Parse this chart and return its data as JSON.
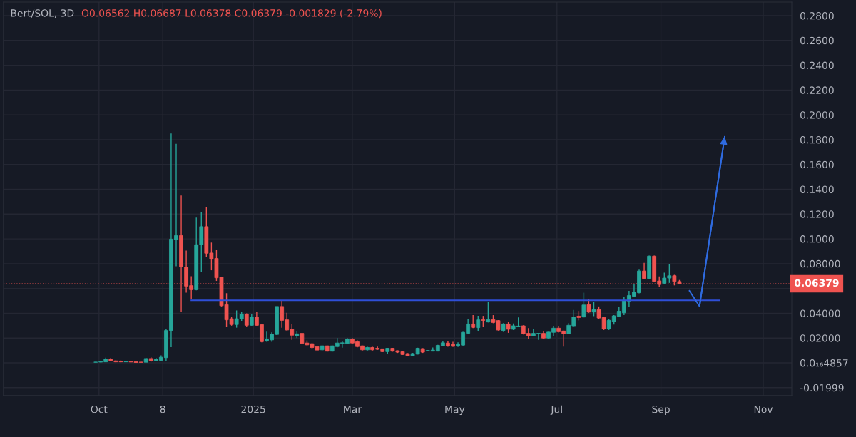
{
  "chart_data": {
    "type": "candlestick",
    "title": "Bert/SOL, 3D",
    "subtitle": "O0.06562 H0.06687 L0.06378 C0.06379 -0.001829 (-2.79%)",
    "x": [
      "2024-09-29",
      "2024-10-02",
      "2024-10-05",
      "2024-10-08",
      "2024-10-11",
      "2024-10-14",
      "2024-10-17",
      "2024-10-20",
      "2024-10-23",
      "2024-10-26",
      "2024-10-29",
      "2024-11-01",
      "2024-11-04",
      "2024-11-07",
      "2024-11-10",
      "2024-11-13",
      "2024-11-16",
      "2024-11-19",
      "2024-11-22",
      "2024-11-25",
      "2024-11-28",
      "2024-12-01",
      "2024-12-04",
      "2024-12-07",
      "2024-12-10",
      "2024-12-13",
      "2024-12-16",
      "2024-12-19",
      "2024-12-22",
      "2024-12-25",
      "2024-12-28",
      "2024-12-31",
      "2025-01-03",
      "2025-01-06",
      "2025-01-09",
      "2025-01-12",
      "2025-01-15",
      "2025-01-18",
      "2025-01-21",
      "2025-01-24",
      "2025-01-27",
      "2025-01-30",
      "2025-02-02",
      "2025-02-05",
      "2025-02-08",
      "2025-02-11",
      "2025-02-14",
      "2025-02-17",
      "2025-02-20",
      "2025-02-23",
      "2025-02-26",
      "2025-03-01",
      "2025-03-04",
      "2025-03-07",
      "2025-03-10",
      "2025-03-13",
      "2025-03-16",
      "2025-03-19",
      "2025-03-22",
      "2025-03-25",
      "2025-03-28",
      "2025-03-31",
      "2025-04-03",
      "2025-04-06",
      "2025-04-09",
      "2025-04-12",
      "2025-04-15",
      "2025-04-18",
      "2025-04-21",
      "2025-04-24",
      "2025-04-27",
      "2025-04-30",
      "2025-05-03",
      "2025-05-06",
      "2025-05-09",
      "2025-05-12",
      "2025-05-15",
      "2025-05-18",
      "2025-05-21",
      "2025-05-24",
      "2025-05-27",
      "2025-05-30",
      "2025-06-02",
      "2025-06-05",
      "2025-06-08",
      "2025-06-11",
      "2025-06-14",
      "2025-06-17",
      "2025-06-20",
      "2025-06-23",
      "2025-06-26",
      "2025-06-29",
      "2025-07-02",
      "2025-07-05",
      "2025-07-08",
      "2025-07-11",
      "2025-07-14",
      "2025-07-17",
      "2025-07-20",
      "2025-07-23",
      "2025-07-26",
      "2025-07-29",
      "2025-08-01",
      "2025-08-04",
      "2025-08-07",
      "2025-08-10",
      "2025-08-13",
      "2025-08-16",
      "2025-08-19",
      "2025-08-22",
      "2025-08-25",
      "2025-08-28",
      "2025-08-31",
      "2025-09-03",
      "2025-09-06",
      "2025-09-09",
      "2025-09-12"
    ],
    "ohlc": [
      [
        0.0005,
        0.0008,
        0.0004,
        0.0006
      ],
      [
        0.0006,
        0.0012,
        0.0005,
        0.001
      ],
      [
        0.0008,
        0.0042,
        0.0006,
        0.003
      ],
      [
        0.003,
        0.004,
        0.0012,
        0.0015
      ],
      [
        0.0016,
        0.002,
        0.0005,
        0.0008
      ],
      [
        0.001,
        0.002,
        0.0005,
        0.0008
      ],
      [
        0.0008,
        0.0016,
        0.0006,
        0.0012
      ],
      [
        0.0013,
        0.0014,
        0.0005,
        0.0007
      ],
      [
        0.0009,
        0.0012,
        0.0,
        0.0003
      ],
      [
        0.0006,
        0.001,
        0.0001,
        0.0004
      ],
      [
        0.0005,
        0.004,
        0.0004,
        0.0035
      ],
      [
        0.0035,
        0.0045,
        0.001,
        0.0015
      ],
      [
        0.0015,
        0.004,
        0.0012,
        0.003
      ],
      [
        0.002,
        0.006,
        0.0015,
        0.0045
      ],
      [
        0.0042,
        0.027,
        0.0015,
        0.0261
      ],
      [
        0.0261,
        0.185,
        0.0127,
        0.0998
      ],
      [
        0.0994,
        0.1766,
        0.0779,
        0.1027
      ],
      [
        0.1027,
        0.135,
        0.0413,
        0.0775
      ],
      [
        0.0771,
        0.0905,
        0.0566,
        0.0619
      ],
      [
        0.0623,
        0.0699,
        0.0513,
        0.059
      ],
      [
        0.059,
        0.1171,
        0.0585,
        0.0953
      ],
      [
        0.0953,
        0.1217,
        0.0731,
        0.1099
      ],
      [
        0.1099,
        0.1255,
        0.0855,
        0.0884
      ],
      [
        0.0886,
        0.097,
        0.0747,
        0.0836
      ],
      [
        0.0842,
        0.0913,
        0.0661,
        0.0686
      ],
      [
        0.0691,
        0.0691,
        0.0455,
        0.0461
      ],
      [
        0.047,
        0.0562,
        0.029,
        0.0347
      ],
      [
        0.0356,
        0.037,
        0.03,
        0.0309
      ],
      [
        0.0309,
        0.0423,
        0.0284,
        0.0356
      ],
      [
        0.0356,
        0.0413,
        0.034,
        0.0394
      ],
      [
        0.0394,
        0.04,
        0.029,
        0.0303
      ],
      [
        0.0303,
        0.0394,
        0.0301,
        0.0371
      ],
      [
        0.0371,
        0.041,
        0.03,
        0.0303
      ],
      [
        0.0309,
        0.0309,
        0.0165,
        0.0171
      ],
      [
        0.0175,
        0.0251,
        0.017,
        0.019
      ],
      [
        0.0185,
        0.0246,
        0.017,
        0.0233
      ],
      [
        0.0229,
        0.0455,
        0.0225,
        0.0455
      ],
      [
        0.0455,
        0.0505,
        0.0284,
        0.0343
      ],
      [
        0.0347,
        0.0404,
        0.026,
        0.0265
      ],
      [
        0.027,
        0.0314,
        0.0185,
        0.0223
      ],
      [
        0.0217,
        0.0255,
        0.02,
        0.0234
      ],
      [
        0.0238,
        0.0238,
        0.015,
        0.0156
      ],
      [
        0.016,
        0.0181,
        0.014,
        0.0145
      ],
      [
        0.0154,
        0.016,
        0.011,
        0.0124
      ],
      [
        0.0131,
        0.0135,
        0.01,
        0.0103
      ],
      [
        0.0105,
        0.014,
        0.01,
        0.0137
      ],
      [
        0.0137,
        0.014,
        0.009,
        0.0094
      ],
      [
        0.0094,
        0.014,
        0.009,
        0.0137
      ],
      [
        0.0131,
        0.02,
        0.0125,
        0.016
      ],
      [
        0.0158,
        0.0175,
        0.0123,
        0.0162
      ],
      [
        0.0156,
        0.02,
        0.015,
        0.019
      ],
      [
        0.019,
        0.02,
        0.015,
        0.016
      ],
      [
        0.017,
        0.0181,
        0.0125,
        0.0131
      ],
      [
        0.0137,
        0.014,
        0.01,
        0.0105
      ],
      [
        0.0105,
        0.013,
        0.01,
        0.0124
      ],
      [
        0.0124,
        0.013,
        0.01,
        0.0105
      ],
      [
        0.0118,
        0.0131,
        0.0105,
        0.0109
      ],
      [
        0.0113,
        0.0115,
        0.0088,
        0.009
      ],
      [
        0.009,
        0.012,
        0.0075,
        0.0118
      ],
      [
        0.0118,
        0.012,
        0.009,
        0.0094
      ],
      [
        0.0098,
        0.01,
        0.008,
        0.0086
      ],
      [
        0.009,
        0.0092,
        0.0065,
        0.0067
      ],
      [
        0.0075,
        0.0078,
        0.0052,
        0.0056
      ],
      [
        0.0056,
        0.008,
        0.0052,
        0.0075
      ],
      [
        0.007,
        0.0122,
        0.0068,
        0.0118
      ],
      [
        0.0115,
        0.0118,
        0.008,
        0.0086
      ],
      [
        0.0095,
        0.0102,
        0.0093,
        0.01
      ],
      [
        0.0094,
        0.0124,
        0.0092,
        0.0103
      ],
      [
        0.0094,
        0.0145,
        0.0092,
        0.0141
      ],
      [
        0.0137,
        0.0179,
        0.0135,
        0.0162
      ],
      [
        0.016,
        0.0179,
        0.013,
        0.0137
      ],
      [
        0.0149,
        0.017,
        0.013,
        0.0133
      ],
      [
        0.0137,
        0.0166,
        0.0128,
        0.0149
      ],
      [
        0.0143,
        0.025,
        0.014,
        0.0246
      ],
      [
        0.0238,
        0.0356,
        0.0232,
        0.0314
      ],
      [
        0.0314,
        0.0385,
        0.028,
        0.0286
      ],
      [
        0.0284,
        0.0379,
        0.0257,
        0.0347
      ],
      [
        0.0347,
        0.0379,
        0.029,
        0.0343
      ],
      [
        0.033,
        0.049,
        0.0326,
        0.0349
      ],
      [
        0.0349,
        0.0385,
        0.032,
        0.0326
      ],
      [
        0.0341,
        0.0345,
        0.026,
        0.0265
      ],
      [
        0.0261,
        0.032,
        0.025,
        0.0314
      ],
      [
        0.0314,
        0.0333,
        0.0242,
        0.0271
      ],
      [
        0.0271,
        0.0318,
        0.0265,
        0.0299
      ],
      [
        0.0293,
        0.0366,
        0.029,
        0.0297
      ],
      [
        0.0299,
        0.0303,
        0.0229,
        0.0233
      ],
      [
        0.0238,
        0.028,
        0.0194,
        0.0219
      ],
      [
        0.0219,
        0.0276,
        0.0215,
        0.0238
      ],
      [
        0.0236,
        0.024,
        0.0185,
        0.0238
      ],
      [
        0.0238,
        0.0257,
        0.0195,
        0.02
      ],
      [
        0.02,
        0.025,
        0.0195,
        0.0248
      ],
      [
        0.0246,
        0.0299,
        0.0219,
        0.028
      ],
      [
        0.028,
        0.0299,
        0.0245,
        0.0251
      ],
      [
        0.0257,
        0.026,
        0.0131,
        0.0233
      ],
      [
        0.0233,
        0.032,
        0.023,
        0.0303
      ],
      [
        0.0299,
        0.0427,
        0.029,
        0.0371
      ],
      [
        0.0377,
        0.0419,
        0.0343,
        0.0366
      ],
      [
        0.037,
        0.0566,
        0.0365,
        0.0467
      ],
      [
        0.047,
        0.0512,
        0.0404,
        0.041
      ],
      [
        0.041,
        0.0493,
        0.0377,
        0.0429
      ],
      [
        0.0429,
        0.0455,
        0.0355,
        0.0362
      ],
      [
        0.0366,
        0.037,
        0.0265,
        0.0276
      ],
      [
        0.0276,
        0.0356,
        0.0265,
        0.0343
      ],
      [
        0.0333,
        0.0385,
        0.0309,
        0.0379
      ],
      [
        0.0375,
        0.0455,
        0.037,
        0.0417
      ],
      [
        0.0404,
        0.0531,
        0.0385,
        0.0505
      ],
      [
        0.0499,
        0.0581,
        0.0455,
        0.0543
      ],
      [
        0.0537,
        0.0632,
        0.053,
        0.0571
      ],
      [
        0.0566,
        0.0752,
        0.056,
        0.0741
      ],
      [
        0.0741,
        0.0807,
        0.0675,
        0.068
      ],
      [
        0.068,
        0.0865,
        0.0675,
        0.0861
      ],
      [
        0.0861,
        0.0865,
        0.065,
        0.0657
      ],
      [
        0.0661,
        0.0697,
        0.0613,
        0.0632
      ],
      [
        0.0642,
        0.0727,
        0.0635,
        0.0684
      ],
      [
        0.0684,
        0.0794,
        0.0645,
        0.0703
      ],
      [
        0.0703,
        0.071,
        0.0625,
        0.0657
      ],
      [
        0.06562,
        0.06687,
        0.06378,
        0.06379
      ]
    ],
    "series": [
      {
        "type": "line",
        "color": "#2f4fd8",
        "x": [
          "2024-11-25",
          "2025-10-06"
        ],
        "values": [
          0.0505,
          0.0505
        ]
      },
      {
        "type": "line",
        "color": "#2f6be0",
        "x": [
          "2025-09-18",
          "2025-09-24",
          "2025-10-09"
        ],
        "values": [
          0.0581,
          0.0457,
          0.1823
        ]
      }
    ],
    "xlim": [
      "2024-08-05",
      "2025-11-18"
    ],
    "xticks": [
      {
        "value": "2024-10-01",
        "label": "Oct"
      },
      {
        "value": "2024-11-08",
        "label": "8"
      },
      {
        "value": "2025-01-01",
        "label": "2025"
      },
      {
        "value": "2025-03-01",
        "label": "Mar"
      },
      {
        "value": "2025-05-01",
        "label": "May"
      },
      {
        "value": "2025-07-01",
        "label": "Jul"
      },
      {
        "value": "2025-09-01",
        "label": "Sep"
      },
      {
        "value": "2025-11-01",
        "label": "Nov"
      }
    ],
    "ylim": [
      -0.0263,
      0.2909
    ],
    "yticks": [
      {
        "value": -0.01999,
        "label": "-0.01999"
      },
      {
        "value": 0,
        "label": "0.0₁₆4857"
      },
      {
        "value": 0.02,
        "label": "0.02000"
      },
      {
        "value": 0.04,
        "label": "0.04000"
      },
      {
        "value": 0.06,
        "label": null
      },
      {
        "value": 0.08,
        "label": "0.08000"
      },
      {
        "value": 0.1,
        "label": "0.1000"
      },
      {
        "value": 0.12,
        "label": "0.1200"
      },
      {
        "value": 0.14,
        "label": "0.1400"
      },
      {
        "value": 0.16,
        "label": "0.1600"
      },
      {
        "value": 0.18,
        "label": "0.1800"
      },
      {
        "value": 0.2,
        "label": "0.2000"
      },
      {
        "value": 0.22,
        "label": "0.2200"
      },
      {
        "value": 0.24,
        "label": "0.2400"
      },
      {
        "value": 0.26,
        "label": "0.2600"
      },
      {
        "value": 0.28,
        "label": "0.2800"
      }
    ],
    "ref_lines": [
      {
        "axis": "y",
        "value": 0.06379,
        "label": "0.06379",
        "color": "#ef5350",
        "line_style": "dotted"
      }
    ],
    "grid": true
  }
}
